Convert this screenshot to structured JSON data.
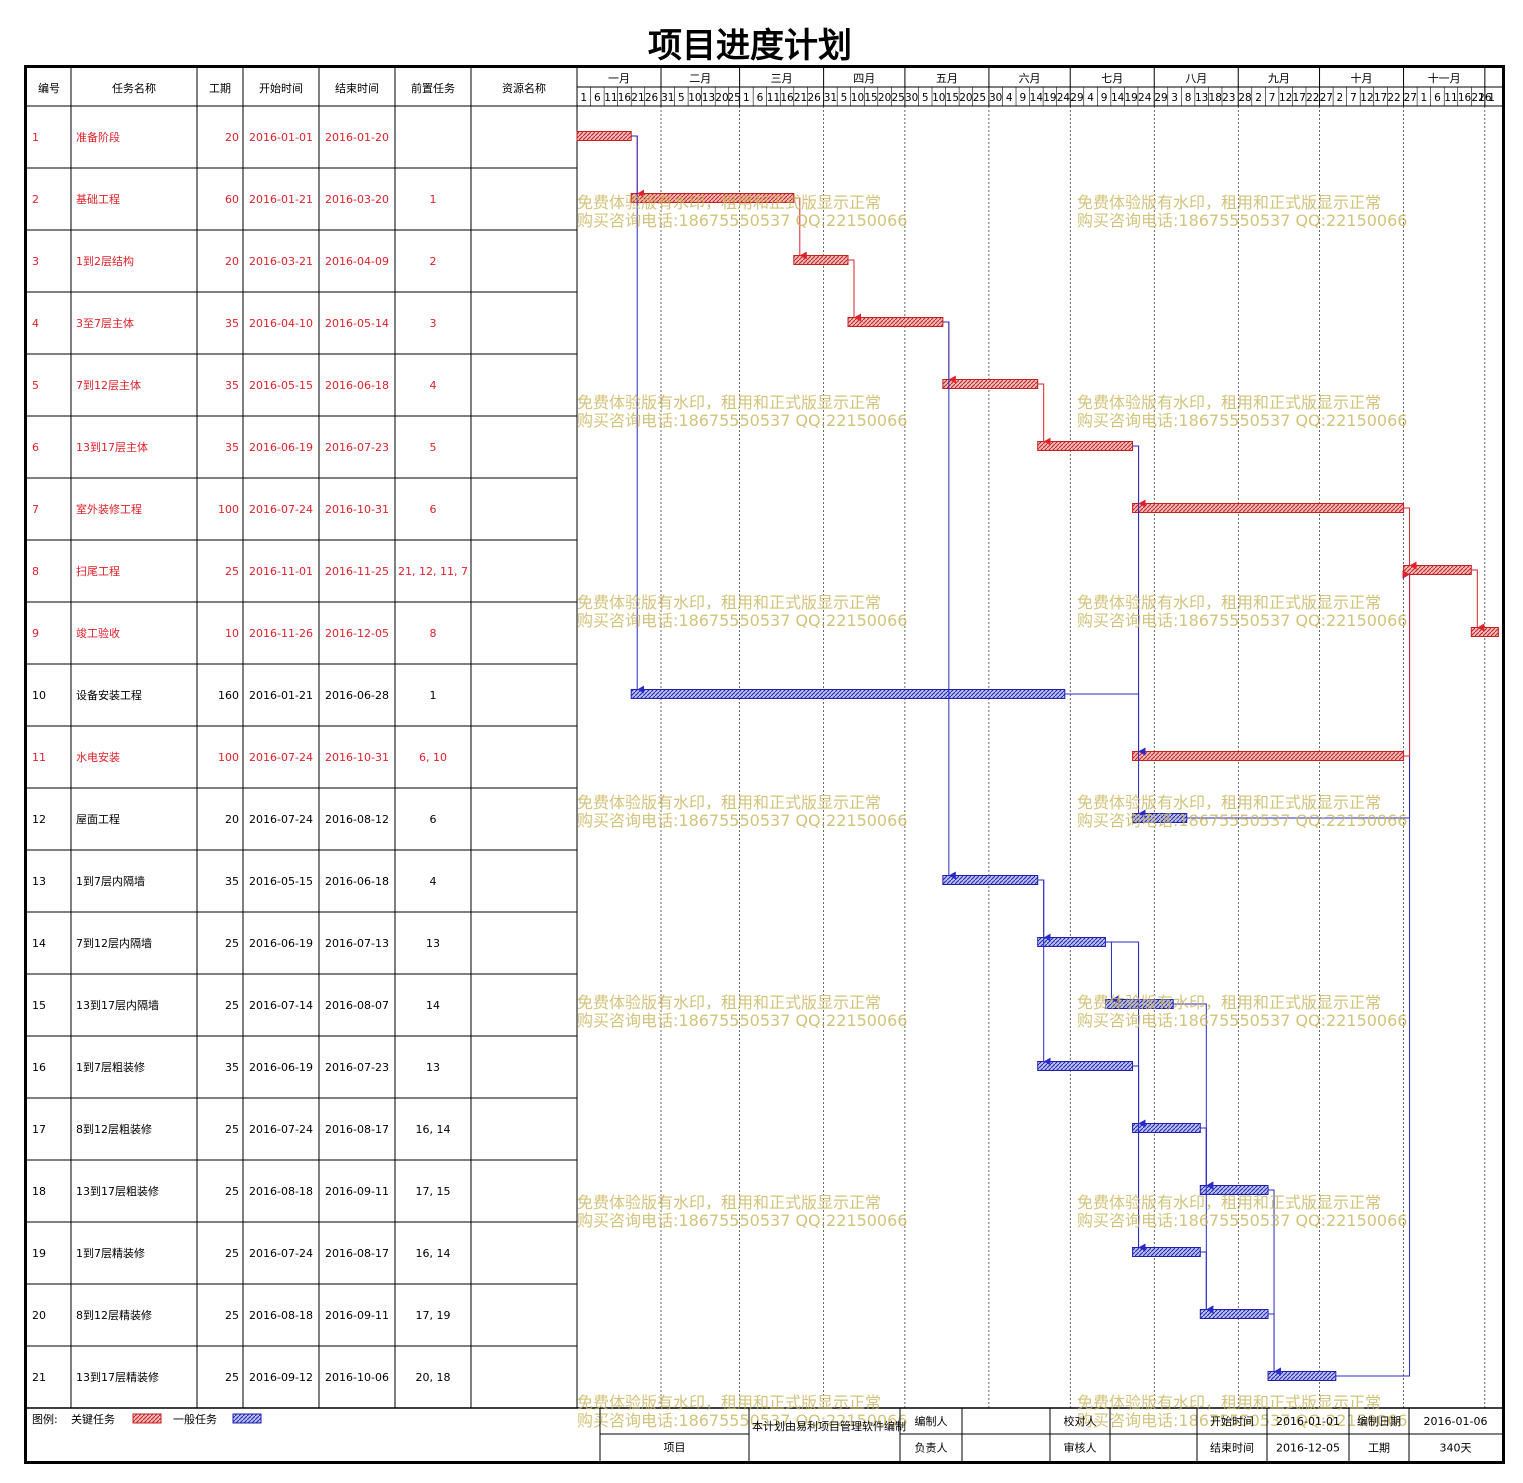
{
  "title": "项目进度计划",
  "columns": [
    "编号",
    "任务名称",
    "工期",
    "开始时间",
    "结束时间",
    "前置任务",
    "资源名称"
  ],
  "tasks": [
    {
      "id": "1",
      "name": "准备阶段",
      "dur": "20",
      "start": "2016-01-01",
      "end": "2016-01-20",
      "pred": "",
      "critical": true,
      "s": 1,
      "e": 20,
      "preds": []
    },
    {
      "id": "2",
      "name": "基础工程",
      "dur": "60",
      "start": "2016-01-21",
      "end": "2016-03-20",
      "pred": "1",
      "critical": true,
      "s": 21,
      "e": 80,
      "preds": [
        1
      ]
    },
    {
      "id": "3",
      "name": "1到2层结构",
      "dur": "20",
      "start": "2016-03-21",
      "end": "2016-04-09",
      "pred": "2",
      "critical": true,
      "s": 81,
      "e": 100,
      "preds": [
        2
      ]
    },
    {
      "id": "4",
      "name": "3至7层主体",
      "dur": "35",
      "start": "2016-04-10",
      "end": "2016-05-14",
      "pred": "3",
      "critical": true,
      "s": 101,
      "e": 135,
      "preds": [
        3
      ]
    },
    {
      "id": "5",
      "name": "7到12层主体",
      "dur": "35",
      "start": "2016-05-15",
      "end": "2016-06-18",
      "pred": "4",
      "critical": true,
      "s": 136,
      "e": 170,
      "preds": [
        4
      ]
    },
    {
      "id": "6",
      "name": "13到17层主体",
      "dur": "35",
      "start": "2016-06-19",
      "end": "2016-07-23",
      "pred": "5",
      "critical": true,
      "s": 171,
      "e": 205,
      "preds": [
        5
      ]
    },
    {
      "id": "7",
      "name": "室外装修工程",
      "dur": "100",
      "start": "2016-07-24",
      "end": "2016-10-31",
      "pred": "6",
      "critical": true,
      "s": 206,
      "e": 305,
      "preds": [
        6
      ]
    },
    {
      "id": "8",
      "name": "扫尾工程",
      "dur": "25",
      "start": "2016-11-01",
      "end": "2016-11-25",
      "pred": "21, 12, 11, 7",
      "critical": true,
      "s": 306,
      "e": 330,
      "preds": [
        21,
        12,
        11,
        7
      ]
    },
    {
      "id": "9",
      "name": "竣工验收",
      "dur": "10",
      "start": "2016-11-26",
      "end": "2016-12-05",
      "pred": "8",
      "critical": true,
      "s": 331,
      "e": 340,
      "preds": [
        8
      ]
    },
    {
      "id": "10",
      "name": "设备安装工程",
      "dur": "160",
      "start": "2016-01-21",
      "end": "2016-06-28",
      "pred": "1",
      "critical": false,
      "s": 21,
      "e": 180,
      "preds": [
        1
      ]
    },
    {
      "id": "11",
      "name": "水电安装",
      "dur": "100",
      "start": "2016-07-24",
      "end": "2016-10-31",
      "pred": "6, 10",
      "critical": true,
      "s": 206,
      "e": 305,
      "preds": [
        6,
        10
      ]
    },
    {
      "id": "12",
      "name": "屋面工程",
      "dur": "20",
      "start": "2016-07-24",
      "end": "2016-08-12",
      "pred": "6",
      "critical": false,
      "s": 206,
      "e": 225,
      "preds": [
        6
      ]
    },
    {
      "id": "13",
      "name": "1到7层内隔墙",
      "dur": "35",
      "start": "2016-05-15",
      "end": "2016-06-18",
      "pred": "4",
      "critical": false,
      "s": 136,
      "e": 170,
      "preds": [
        4
      ]
    },
    {
      "id": "14",
      "name": "7到12层内隔墙",
      "dur": "25",
      "start": "2016-06-19",
      "end": "2016-07-13",
      "pred": "13",
      "critical": false,
      "s": 171,
      "e": 195,
      "preds": [
        13
      ]
    },
    {
      "id": "15",
      "name": "13到17层内隔墙",
      "dur": "25",
      "start": "2016-07-14",
      "end": "2016-08-07",
      "pred": "14",
      "critical": false,
      "s": 196,
      "e": 220,
      "preds": [
        14
      ]
    },
    {
      "id": "16",
      "name": "1到7层粗装修",
      "dur": "35",
      "start": "2016-06-19",
      "end": "2016-07-23",
      "pred": "13",
      "critical": false,
      "s": 171,
      "e": 205,
      "preds": [
        13
      ]
    },
    {
      "id": "17",
      "name": "8到12层粗装修",
      "dur": "25",
      "start": "2016-07-24",
      "end": "2016-08-17",
      "pred": "16, 14",
      "critical": false,
      "s": 206,
      "e": 230,
      "preds": [
        16,
        14
      ]
    },
    {
      "id": "18",
      "name": "13到17层粗装修",
      "dur": "25",
      "start": "2016-08-18",
      "end": "2016-09-11",
      "pred": "17, 15",
      "critical": false,
      "s": 231,
      "e": 255,
      "preds": [
        17,
        15
      ]
    },
    {
      "id": "19",
      "name": "1到7层精装修",
      "dur": "25",
      "start": "2016-07-24",
      "end": "2016-08-17",
      "pred": "16, 14",
      "critical": false,
      "s": 206,
      "e": 230,
      "preds": [
        16,
        14
      ]
    },
    {
      "id": "20",
      "name": "8到12层精装修",
      "dur": "25",
      "start": "2016-08-18",
      "end": "2016-09-11",
      "pred": "17, 19",
      "critical": false,
      "s": 231,
      "e": 255,
      "preds": [
        17,
        19
      ]
    },
    {
      "id": "21",
      "name": "13到17层精装修",
      "dur": "25",
      "start": "2016-09-12",
      "end": "2016-10-06",
      "pred": "20, 18",
      "critical": false,
      "s": 256,
      "e": 280,
      "preds": [
        20,
        18
      ]
    }
  ],
  "months": [
    {
      "name": "一月",
      "days": [
        "1",
        "6",
        "11",
        "16",
        "21",
        "26"
      ]
    },
    {
      "name": "二月",
      "days": [
        "31",
        "5",
        "10",
        "13",
        "20",
        "25"
      ]
    },
    {
      "name": "三月",
      "days": [
        "1",
        "6",
        "11",
        "16",
        "21",
        "26"
      ]
    },
    {
      "name": "四月",
      "days": [
        "31",
        "5",
        "10",
        "15",
        "20",
        "25"
      ]
    },
    {
      "name": "五月",
      "days": [
        "30",
        "5",
        "10",
        "15",
        "20",
        "25"
      ]
    },
    {
      "name": "六月",
      "days": [
        "30",
        "4",
        "9",
        "14",
        "19",
        "24"
      ]
    },
    {
      "name": "七月",
      "days": [
        "29",
        "4",
        "9",
        "14",
        "19",
        "24"
      ]
    },
    {
      "name": "八月",
      "days": [
        "29",
        "3",
        "8",
        "13",
        "18",
        "23"
      ]
    },
    {
      "name": "九月",
      "days": [
        "28",
        "2",
        "7",
        "12",
        "17",
        "22"
      ]
    },
    {
      "name": "十月",
      "days": [
        "27",
        "2",
        "7",
        "12",
        "17",
        "22"
      ]
    },
    {
      "name": "十一月",
      "days": [
        "27",
        "1",
        "6",
        "11",
        "16",
        "21",
        "26"
      ]
    },
    {
      "name": "",
      "days": [
        "1"
      ]
    }
  ],
  "watermark": {
    "line1": "免费体验版有水印，租用和正式版显示正常",
    "line2": "购买咨询电话:18675550537 QQ:22150066"
  },
  "legend": {
    "label": "图例:",
    "critical": "关键任务",
    "normal": "一般任务"
  },
  "footer": {
    "project_label": "项目",
    "software_text": "本计划由易利项目管理软件编制",
    "editor_label": "编制人",
    "editor_value": "",
    "checker_label": "校对人",
    "checker_value": "",
    "start_label": "开始时间",
    "start_value": "2016-01-01",
    "date_label": "编制日期",
    "date_value": "2016-01-06",
    "owner_label": "负责人",
    "owner_value": "",
    "reviewer_label": "审核人",
    "reviewer_value": "",
    "end_label": "结束时间",
    "end_value": "2016-12-05",
    "duration_label": "工期",
    "duration_value": "340天"
  },
  "colors": {
    "critical": "#e0202a",
    "normal": "#2a2ac8",
    "critical_fill": "#e46a6a",
    "normal_fill": "#6a78d8",
    "watermark": "#c9b45a",
    "text": "#000000"
  }
}
